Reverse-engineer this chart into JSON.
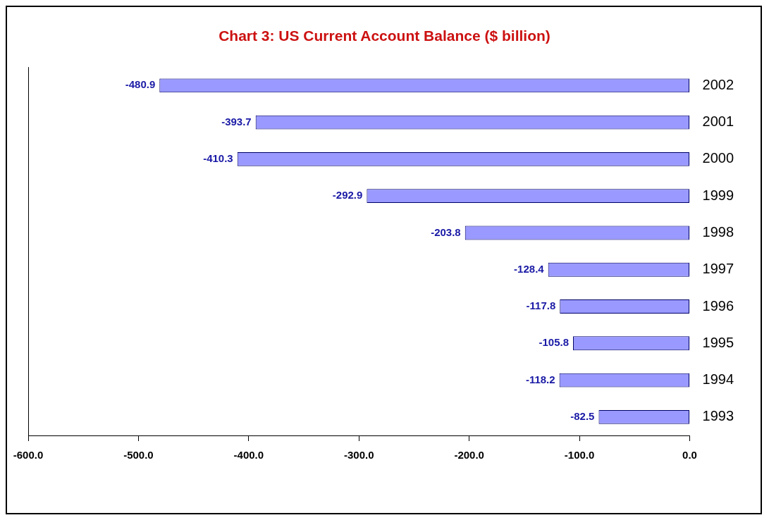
{
  "chart_data": {
    "type": "bar",
    "orientation": "horizontal",
    "title": "Chart 3: US Current Account Balance ($ billion)",
    "categories": [
      "2002",
      "2001",
      "2000",
      "1999",
      "1998",
      "1997",
      "1996",
      "1995",
      "1994",
      "1993"
    ],
    "values": [
      -480.9,
      -393.7,
      -410.3,
      -292.9,
      -203.8,
      -128.4,
      -117.8,
      -105.8,
      -118.2,
      -82.5
    ],
    "color": "#9999ff",
    "xlim": [
      -600,
      0
    ],
    "xticks": [
      {
        "value": -600,
        "label": "-600.0"
      },
      {
        "value": -500,
        "label": "-500.0"
      },
      {
        "value": -400,
        "label": "-400.0"
      },
      {
        "value": -300,
        "label": "-300.0"
      },
      {
        "value": -200,
        "label": "-200.0"
      },
      {
        "value": -100,
        "label": "-100.0"
      },
      {
        "value": 0,
        "label": "0.0"
      }
    ],
    "data_labels": true,
    "grid": false,
    "legend": false
  }
}
